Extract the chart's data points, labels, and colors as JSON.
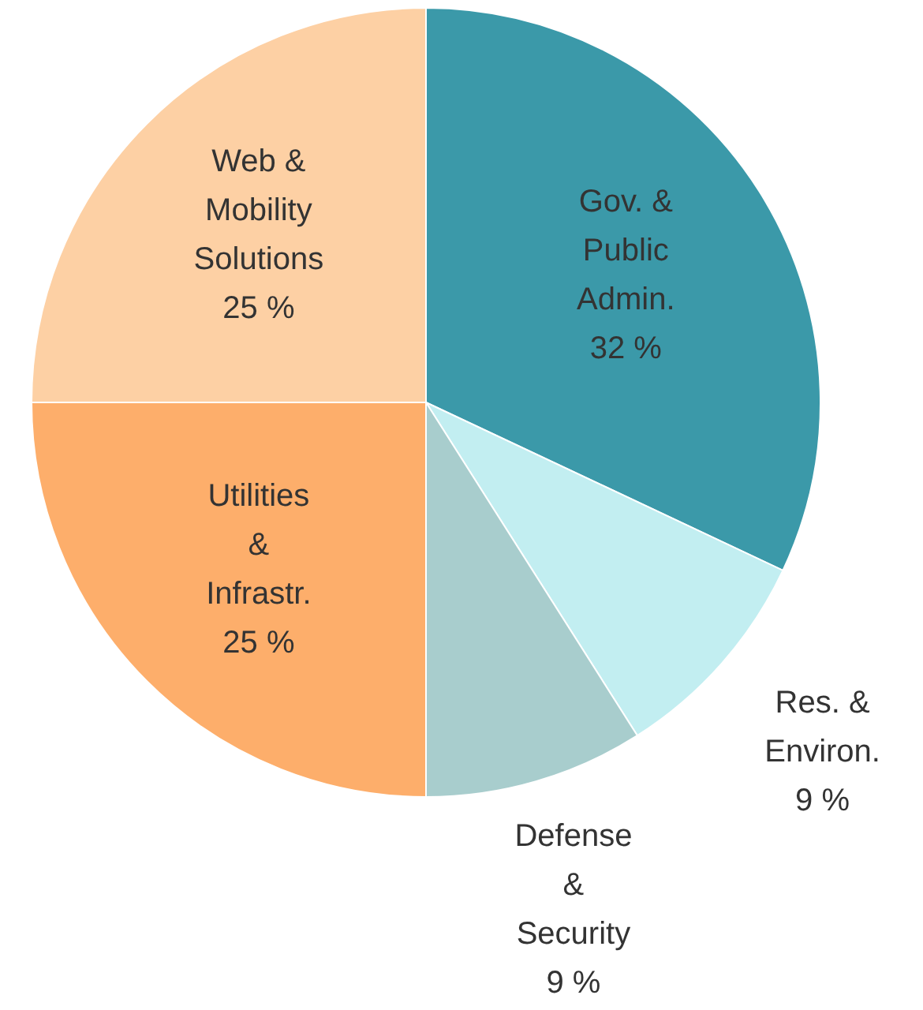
{
  "chart_data": {
    "type": "pie",
    "categories": [
      "Gov. &\nPublic\nAdmin.",
      "Res. &\nEnviron.",
      "Defense\n&\nSecurity",
      "Utilities\n&\nInfrastr.",
      "Web &\nMobility\nSolutions"
    ],
    "values": [
      32,
      9,
      9,
      25,
      25
    ],
    "value_labels": [
      "32 %",
      "9 %",
      "9 %",
      "25 %",
      "25 %"
    ],
    "colors": [
      "#3b99a9",
      "#c2eef1",
      "#a8cdcd",
      "#fdae6b",
      "#fdd0a4"
    ]
  }
}
